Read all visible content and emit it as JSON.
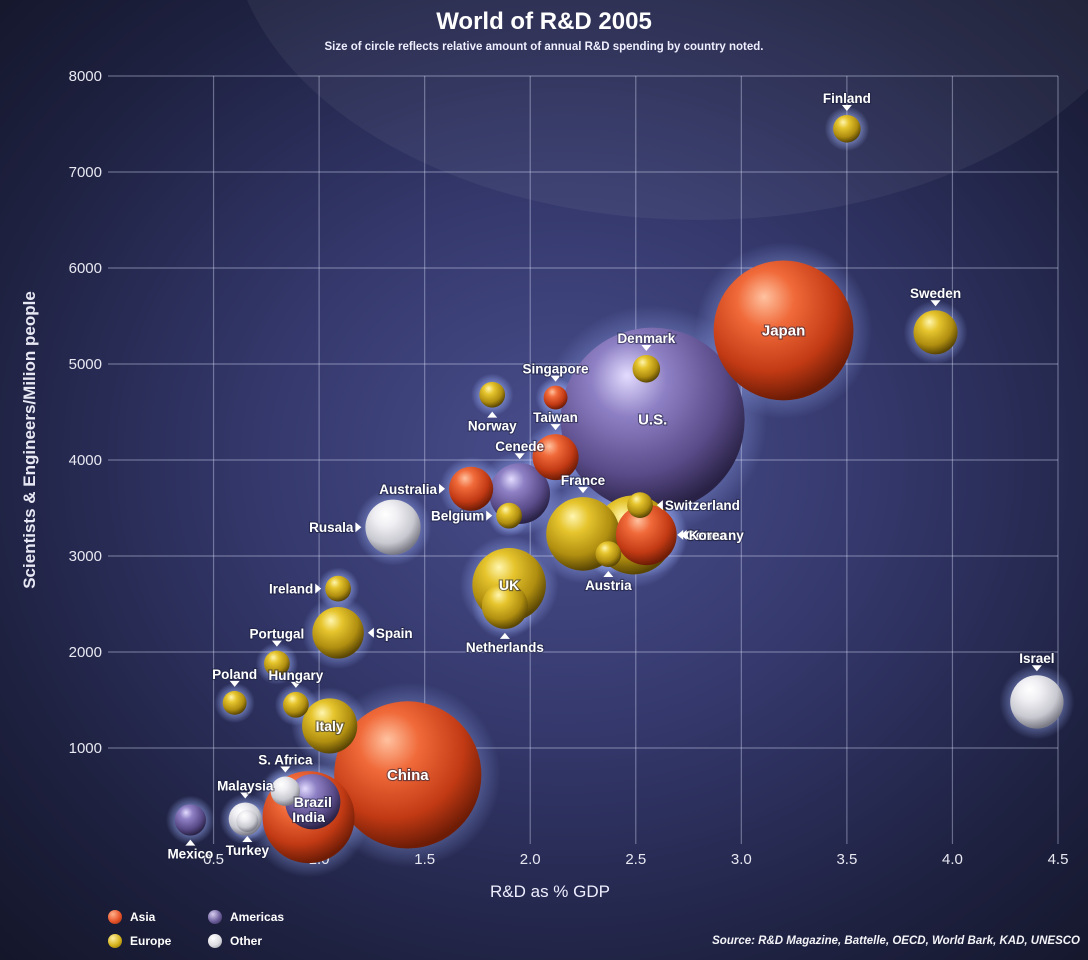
{
  "chart_data": {
    "type": "scatter",
    "title": "World of R&D 2005",
    "subtitle": "Size of circle reflects relative amount of annual R&D spending by country noted.",
    "xlabel": "R&D as % GDP",
    "ylabel": "Scientists & Engineers/Milion people",
    "xlim": [
      0,
      4.5
    ],
    "ylim": [
      0,
      8000
    ],
    "xticks": [
      "0.5",
      "1.0",
      "1.5",
      "2.0",
      "2.5",
      "3.0",
      "3.5",
      "4.0",
      "4.5"
    ],
    "xtick_values": [
      0.5,
      1.0,
      1.5,
      2.0,
      2.5,
      3.0,
      3.5,
      4.0,
      4.5
    ],
    "yticks": [
      "1000",
      "2000",
      "3000",
      "4000",
      "5000",
      "6000",
      "7000",
      "8000"
    ],
    "ytick_values": [
      1000,
      2000,
      3000,
      4000,
      5000,
      6000,
      7000,
      8000
    ],
    "grid": true,
    "regions": {
      "Asia": "#e8542a",
      "Europe": "#d4b21c",
      "Americas": "#6d5f9c",
      "Other": "#e4e4e8"
    },
    "legend_labels": [
      "Asia",
      "Americas",
      "Europe",
      "Other"
    ],
    "source": "Source: R&D Magazine, Battelle, OECD, World Bark, KAD, UNESCO",
    "points": [
      {
        "name": "U.S.",
        "x": 2.58,
        "y": 4420,
        "size": 10,
        "region": "Americas",
        "label": "inside"
      },
      {
        "name": "China",
        "x": 1.42,
        "y": 720,
        "size": 8,
        "region": "Asia",
        "label": "inside"
      },
      {
        "name": "Japan",
        "x": 3.2,
        "y": 5350,
        "size": 7.6,
        "region": "Asia",
        "label": "inside"
      },
      {
        "name": "India",
        "x": 0.95,
        "y": 280,
        "size": 5,
        "region": "Asia",
        "label": "inside"
      },
      {
        "name": "Brazil",
        "x": 0.97,
        "y": 440,
        "size": 3,
        "region": "Americas",
        "label": "inside"
      },
      {
        "name": "Germany",
        "x": 2.49,
        "y": 3220,
        "size": 4.3,
        "region": "Europe",
        "label": "right"
      },
      {
        "name": "Korea",
        "x": 2.55,
        "y": 3220,
        "size": 3.3,
        "region": "Asia",
        "label": "right"
      },
      {
        "name": "France",
        "x": 2.25,
        "y": 3230,
        "size": 4,
        "region": "Europe",
        "label": "above"
      },
      {
        "name": "UK",
        "x": 1.9,
        "y": 2700,
        "size": 4,
        "region": "Europe",
        "label": "inside"
      },
      {
        "name": "Italy",
        "x": 1.05,
        "y": 1230,
        "size": 3,
        "region": "Europe",
        "label": "inside"
      },
      {
        "name": "Cenede",
        "x": 1.95,
        "y": 3650,
        "size": 3.3,
        "region": "Americas",
        "label": "above"
      },
      {
        "name": "Rusala",
        "x": 1.35,
        "y": 3300,
        "size": 3,
        "region": "Other",
        "label": "left"
      },
      {
        "name": "Spain",
        "x": 1.09,
        "y": 2200,
        "size": 2.8,
        "region": "Europe",
        "label": "right"
      },
      {
        "name": "Netherlands",
        "x": 1.88,
        "y": 2480,
        "size": 2.5,
        "region": "Europe",
        "label": "below"
      },
      {
        "name": "Taiwan",
        "x": 2.12,
        "y": 4030,
        "size": 2.5,
        "region": "Asia",
        "label": "above"
      },
      {
        "name": "Australia",
        "x": 1.72,
        "y": 3700,
        "size": 2.4,
        "region": "Asia",
        "label": "left"
      },
      {
        "name": "Sweden",
        "x": 3.92,
        "y": 5330,
        "size": 2.4,
        "region": "Europe",
        "label": "above"
      },
      {
        "name": "Israel",
        "x": 4.4,
        "y": 1480,
        "size": 2.9,
        "region": "Other",
        "label": "above"
      },
      {
        "name": "Finland",
        "x": 3.5,
        "y": 7450,
        "size": 1.5,
        "region": "Europe",
        "label": "above"
      },
      {
        "name": "Denmark",
        "x": 2.55,
        "y": 4950,
        "size": 1.5,
        "region": "Europe",
        "label": "above"
      },
      {
        "name": "Switzerland",
        "x": 2.52,
        "y": 3530,
        "size": 1.4,
        "region": "Europe",
        "label": "right"
      },
      {
        "name": "Austria",
        "x": 2.37,
        "y": 3020,
        "size": 1.4,
        "region": "Europe",
        "label": "below"
      },
      {
        "name": "Norway",
        "x": 1.82,
        "y": 4680,
        "size": 1.4,
        "region": "Europe",
        "label": "below"
      },
      {
        "name": "Singapore",
        "x": 2.12,
        "y": 4650,
        "size": 1.3,
        "region": "Asia",
        "label": "above"
      },
      {
        "name": "Belgium",
        "x": 1.9,
        "y": 3420,
        "size": 1.4,
        "region": "Europe",
        "label": "left"
      },
      {
        "name": "Ireland",
        "x": 1.09,
        "y": 2660,
        "size": 1.4,
        "region": "Europe",
        "label": "left"
      },
      {
        "name": "Portugal",
        "x": 0.8,
        "y": 1880,
        "size": 1.4,
        "region": "Europe",
        "label": "above"
      },
      {
        "name": "Hungary",
        "x": 0.89,
        "y": 1450,
        "size": 1.4,
        "region": "Europe",
        "label": "above"
      },
      {
        "name": "Poland",
        "x": 0.6,
        "y": 1470,
        "size": 1.3,
        "region": "Europe",
        "label": "above"
      },
      {
        "name": "S. Africa",
        "x": 0.84,
        "y": 550,
        "size": 1.6,
        "region": "Other",
        "label": "above"
      },
      {
        "name": "Malaysia",
        "x": 0.65,
        "y": 260,
        "size": 1.8,
        "region": "Other",
        "label": "above"
      },
      {
        "name": "Mexico",
        "x": 0.39,
        "y": 250,
        "size": 1.7,
        "region": "Americas",
        "label": "below"
      },
      {
        "name": "Turkey",
        "x": 0.66,
        "y": 240,
        "size": 1.2,
        "region": "Other",
        "label": "below"
      }
    ]
  }
}
